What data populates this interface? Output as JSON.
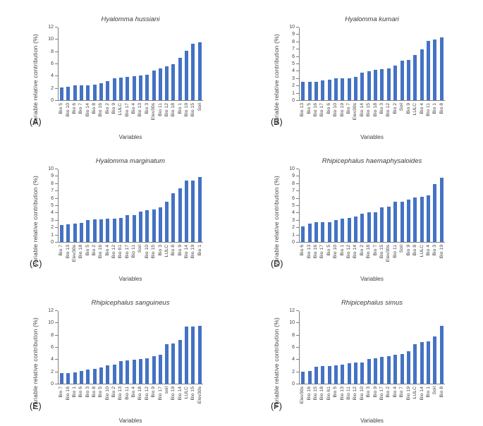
{
  "colors": {
    "bar": "#4472C4",
    "axis": "#7f7f7f",
    "text": "#404040"
  },
  "chart_data": [
    {
      "type": "bar",
      "letter": "(A)",
      "title": "Hyalomma hussiani",
      "ylabel": "Variable relative contribution (%)",
      "xlabel": "Variables",
      "ylim": [
        0,
        12
      ],
      "ytick_step": 2,
      "grid": false,
      "categories": [
        "Bio 5",
        "Bio 10",
        "Bio 6",
        "Bio 7",
        "Bio 14",
        "Bio 8",
        "Bio 16",
        "Bio 2",
        "Bio 9",
        "LULC",
        "Bio 17",
        "Bio 4",
        "Bio 13",
        "Bio 3",
        "Elev30s",
        "Bio 11",
        "Bio 12",
        "Bio 18",
        "Bio 1",
        "Bio 19",
        "Bio 15",
        "Soil"
      ],
      "values": [
        2.1,
        2.25,
        2.4,
        2.4,
        2.45,
        2.6,
        2.8,
        3.2,
        3.6,
        3.7,
        3.9,
        4.0,
        4.1,
        4.2,
        4.85,
        5.3,
        5.6,
        6.0,
        7.0,
        8.2,
        9.3,
        9.5
      ]
    },
    {
      "type": "bar",
      "letter": "(B)",
      "title": "Hyalomma kumari",
      "ylabel": "Variable relative contribution (%)",
      "xlabel": "Variables",
      "ylim": [
        0,
        10
      ],
      "ytick_step": 1,
      "grid": false,
      "categories": [
        "Bio 13",
        "Bio 5",
        "Bio 16",
        "Bio 17",
        "Bio 6",
        "Bio 10",
        "Bio 19",
        "Bio 7",
        "Elev30s",
        "Bio 14",
        "Bio 15",
        "Bio 18",
        "Bio 3",
        "Bio 12",
        "Bio 2",
        "Soil",
        "Bio 9",
        "LULC",
        "Bio 4",
        "Bio 11",
        "Bio 1",
        "Bio 8"
      ],
      "values": [
        2.5,
        2.5,
        2.55,
        2.75,
        2.8,
        3.0,
        3.0,
        3.0,
        3.2,
        3.75,
        3.95,
        4.2,
        4.3,
        4.4,
        4.75,
        5.4,
        5.55,
        6.2,
        7.0,
        8.2,
        8.35,
        8.65
      ]
    },
    {
      "type": "bar",
      "letter": "(C)",
      "title": "Hyalomma marginatum",
      "ylabel": "Variable relative contribution (%)",
      "xlabel": "Variables",
      "ylim": [
        0,
        10
      ],
      "ytick_step": 1,
      "grid": false,
      "categories": [
        "Bio 7",
        "Bio 13",
        "Elev30s",
        "Bio 18",
        "Bio 5",
        "Bio 2",
        "Bio 16",
        "Bio 4",
        "Bio 12",
        "Bio 61",
        "Bio 17",
        "Bio 11",
        "Soil",
        "Bio 10",
        "Bio 15",
        "Bio 3",
        "LULC",
        "Bio 8",
        "Bio 9",
        "Bio 14",
        "Bio 19",
        "Bio 1"
      ],
      "values": [
        2.3,
        2.45,
        2.5,
        2.65,
        3.05,
        3.1,
        3.1,
        3.2,
        3.25,
        3.3,
        3.65,
        3.7,
        4.15,
        4.4,
        4.5,
        4.8,
        5.55,
        6.7,
        7.4,
        8.4,
        8.45,
        8.9
      ]
    },
    {
      "type": "bar",
      "letter": "(D)",
      "title": "Rhipicephalus haemaphysaloides",
      "ylabel": "Variable relative contribution (%)",
      "xlabel": "Variables",
      "ylim": [
        0,
        10
      ],
      "ytick_step": 1,
      "grid": false,
      "categories": [
        "Bio 6",
        "Bio 13",
        "Bio 16",
        "Bio 17",
        "Bio 5",
        "Bio 10",
        "Bio 1",
        "Bio 12",
        "Bio 14",
        "Bio 2",
        "Bio 18",
        "Bio 7",
        "Bio 15",
        "Elev30s",
        "Bio 11",
        "Soil",
        "Bio 9",
        "Bio 8",
        "LULC",
        "Bio 4",
        "Bio 3",
        "Bio 19"
      ],
      "values": [
        2.15,
        2.5,
        2.7,
        2.75,
        2.75,
        3.0,
        3.2,
        3.35,
        3.5,
        3.85,
        4.05,
        4.1,
        4.75,
        4.9,
        5.5,
        5.5,
        5.8,
        6.15,
        6.2,
        6.4,
        8.0,
        8.85
      ]
    },
    {
      "type": "bar",
      "letter": "(E)",
      "title": "Rhipicephalus sanguineus",
      "ylabel": "Variable relative contribution (%)",
      "xlabel": "Variables",
      "ylim": [
        0,
        12
      ],
      "ytick_step": 2,
      "grid": false,
      "categories": [
        "Bio 7",
        "Bio 16",
        "Bio 1",
        "Bio 6",
        "Bio 3",
        "Bio 8",
        "Bio 5",
        "Bio 10",
        "Bio 2",
        "Bio 13",
        "Bio 11",
        "Bio 4",
        "Bio 18",
        "Bio 12",
        "Bio 9",
        "Bio 17",
        "soil",
        "Bio 19",
        "Bio 14",
        "LULC",
        "Bio 15",
        "Elev30s"
      ],
      "values": [
        1.8,
        1.8,
        1.85,
        2.1,
        2.3,
        2.5,
        2.65,
        3.05,
        3.2,
        3.75,
        3.9,
        3.95,
        4.1,
        4.25,
        4.5,
        4.75,
        6.5,
        6.7,
        7.2,
        9.45,
        9.45,
        9.6
      ]
    },
    {
      "type": "bar",
      "letter": "(F)",
      "title": "Rhipicephalus simus",
      "ylabel": "Variable relative contribution (%)",
      "xlabel": "Variables",
      "ylim": [
        0,
        12
      ],
      "ytick_step": 2,
      "grid": false,
      "categories": [
        "Elev30s",
        "Bio 16",
        "Bio 15",
        "Bio 18",
        "Bio 61",
        "Bio 5",
        "Bio 13",
        "Bio 11",
        "Bio 12",
        "Bio 10",
        "Bio 3",
        "Bio 9",
        "Bio 17",
        "Bio 2",
        "Bio 4",
        "Bio 7",
        "Bio 19",
        "LULC",
        "Bio 14",
        "Bio 1",
        "Soil",
        "Bio 8"
      ],
      "values": [
        2.0,
        2.1,
        2.85,
        2.9,
        2.9,
        3.05,
        3.15,
        3.35,
        3.5,
        3.55,
        4.1,
        4.25,
        4.45,
        4.55,
        4.75,
        4.85,
        5.35,
        6.55,
        6.85,
        7.05,
        7.8,
        9.5
      ]
    }
  ]
}
